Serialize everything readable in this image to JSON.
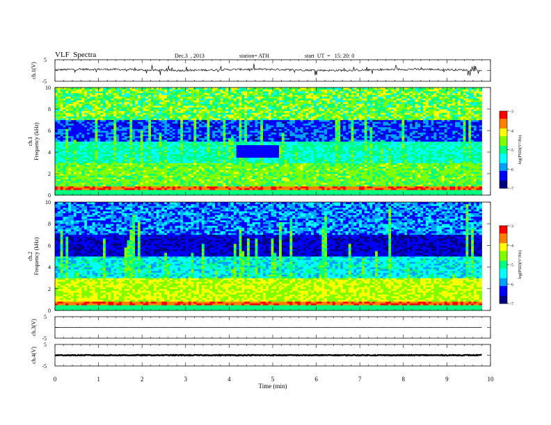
{
  "header": {
    "title": "VLF  Spectra",
    "date": "Dec.3  , 2013",
    "station": "station= ATH",
    "start": "start  UT  =   15: 20: 0"
  },
  "panels": {
    "ch1_label": "ch.1(V)",
    "ch3_label": "ch.3(V)",
    "ch4_label": "ch.4(V)",
    "spec1_label": "ch.1",
    "spec2_label": "ch.2",
    "freq_label": "Frequency  (kHz)",
    "colorbar_label": "log(PSD)(V²/Hz)"
  },
  "chart_data": [
    {
      "type": "line",
      "name": "ch.1",
      "ylabel": "ch.1(V)",
      "ylim": [
        -5,
        5
      ],
      "yticks": [
        "5",
        "-5"
      ],
      "level": 0.3
    },
    {
      "type": "heatmap",
      "name": "ch.1 spectrogram",
      "ylabel": "ch.1  Frequency  (kHz)",
      "ylim": [
        0,
        10
      ],
      "yticks": [
        "0",
        "2",
        "4",
        "6",
        "8",
        "10"
      ],
      "colorbar": {
        "label": "log(PSD)(V²/Hz)",
        "range": [
          -7,
          -3
        ],
        "ticks": [
          "-3",
          "-4",
          "-5",
          "-6",
          "-7"
        ]
      }
    },
    {
      "type": "heatmap",
      "name": "ch.2 spectrogram",
      "ylabel": "ch.2  Frequency  (kHz)",
      "ylim": [
        0,
        10
      ],
      "yticks": [
        "0",
        "2",
        "4",
        "6",
        "8",
        "10"
      ],
      "colorbar": {
        "label": "log(PSD)(V²/Hz)",
        "range": [
          -7,
          -3
        ],
        "ticks": [
          "-3",
          "-4",
          "-5",
          "-6",
          "-7"
        ]
      }
    },
    {
      "type": "line",
      "name": "ch.3",
      "ylabel": "ch.3(V)",
      "ylim": [
        -5,
        5
      ],
      "yticks": [
        "5",
        "-5"
      ],
      "level": 0.0
    },
    {
      "type": "line",
      "name": "ch.4",
      "ylabel": "ch.4(V)",
      "ylim": [
        -5,
        5
      ],
      "yticks": [
        "5",
        "-5"
      ],
      "level": 0.0
    }
  ],
  "xaxis": {
    "label": "Time  (min)",
    "range": [
      0,
      10
    ],
    "ticks": [
      "0",
      "1",
      "2",
      "3",
      "4",
      "5",
      "6",
      "7",
      "8",
      "9",
      "10"
    ],
    "data_end": 9.8
  },
  "colors": {
    "scale": [
      "#000080",
      "#0000ff",
      "#00a0ff",
      "#00ffff",
      "#00ff80",
      "#80ff00",
      "#ffff00",
      "#ff8000",
      "#ff0000",
      "#ffffff"
    ]
  }
}
